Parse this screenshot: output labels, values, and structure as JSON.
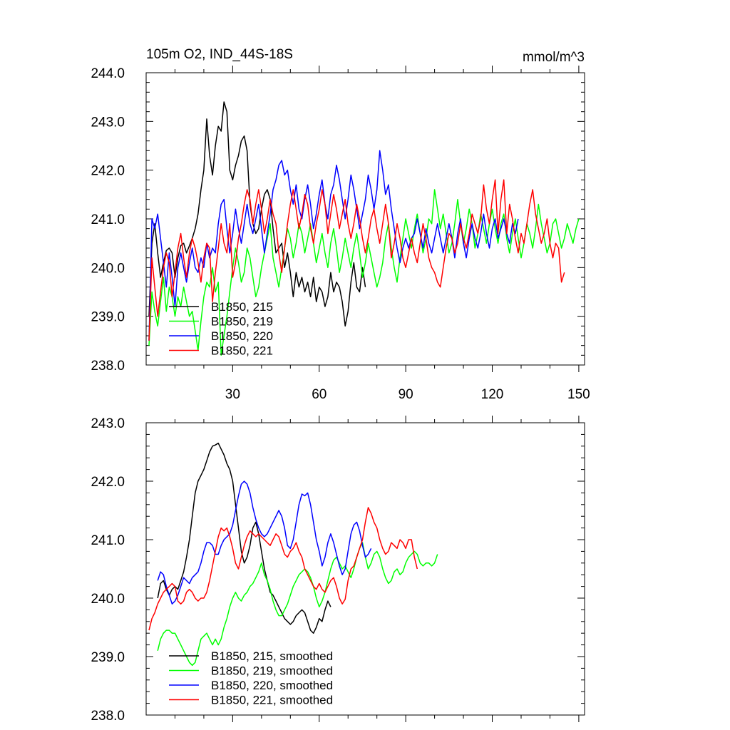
{
  "chart_data": [
    {
      "type": "line",
      "title": "105m O2, IND_44S-18S",
      "units": "mmol/m^3",
      "xlim": [
        0,
        152
      ],
      "ylim": [
        238.0,
        244.0
      ],
      "x_ticks": [
        30,
        60,
        90,
        120,
        150
      ],
      "y_ticks": [
        "238.0",
        "239.0",
        "240.0",
        "241.0",
        "242.0",
        "243.0",
        "244.0"
      ],
      "grid": false,
      "legend_position": "lower-left",
      "series": [
        {
          "name": "B1850, 215",
          "color": "#000000",
          "x_start": 1,
          "values": [
            239.0,
            240.5,
            240.9,
            240.3,
            239.8,
            240.1,
            240.35,
            240.4,
            240.3,
            239.8,
            240.2,
            240.45,
            240.5,
            240.3,
            240.45,
            240.6,
            240.8,
            241.1,
            241.6,
            242.0,
            243.05,
            242.3,
            241.9,
            242.5,
            242.9,
            242.8,
            243.4,
            243.2,
            242.0,
            241.8,
            242.1,
            242.3,
            242.6,
            242.7,
            242.4,
            241.3,
            240.9,
            240.7,
            240.8,
            241.2,
            241.5,
            241.6,
            241.4,
            240.8,
            240.3,
            240.4,
            240.5,
            240.0,
            240.3,
            239.9,
            239.4,
            239.9,
            239.6,
            239.8,
            239.5,
            239.7,
            239.4,
            239.8,
            239.3,
            239.6,
            239.5,
            239.2,
            239.4,
            239.9,
            239.5,
            239.7,
            239.6,
            239.3,
            238.8,
            239.1,
            239.7,
            240.1,
            239.6,
            239.5,
            240.0,
            239.6
          ]
        },
        {
          "name": "B1850, 219",
          "color": "#00ff00",
          "x_start": 1,
          "values": [
            238.4,
            239.5,
            239.1,
            238.8,
            239.3,
            239.8,
            239.1,
            239.6,
            239.4,
            239.0,
            239.4,
            239.2,
            239.6,
            239.3,
            239.0,
            239.1,
            238.7,
            238.3,
            238.9,
            239.4,
            239.7,
            239.6,
            240.0,
            239.5,
            239.7,
            238.2,
            238.6,
            239.0,
            239.5,
            240.0,
            240.4,
            240.1,
            239.7,
            239.9,
            240.4,
            240.2,
            239.8,
            239.4,
            239.6,
            240.0,
            240.3,
            240.6,
            240.9,
            240.2,
            239.9,
            239.6,
            240.0,
            240.4,
            240.8,
            240.6,
            240.2,
            240.5,
            240.9,
            240.7,
            240.3,
            240.6,
            240.9,
            240.5,
            240.1,
            240.4,
            240.7,
            240.3,
            240.0,
            240.5,
            240.8,
            240.4,
            239.9,
            240.2,
            240.6,
            240.3,
            240.0,
            240.4,
            240.7,
            240.3,
            239.8,
            240.1,
            240.5,
            240.2,
            239.9,
            239.6,
            239.8,
            240.1,
            240.6,
            240.9,
            240.4,
            240.0,
            239.7,
            240.2,
            240.6,
            241.0,
            240.7,
            240.4,
            240.8,
            241.1,
            240.7,
            240.3,
            240.6,
            241.0,
            240.9,
            241.6,
            241.2,
            240.8,
            241.1,
            240.7,
            240.3,
            240.5,
            240.9,
            241.4,
            240.9,
            240.5,
            240.8,
            241.2,
            240.9,
            240.4,
            240.7,
            241.1,
            240.8,
            240.5,
            240.9,
            241.2,
            240.8,
            240.5,
            240.9,
            241.1,
            240.6,
            240.3,
            240.7,
            241.0,
            240.6,
            240.2,
            240.5,
            240.9,
            240.7,
            240.4,
            240.8,
            241.3,
            240.9,
            240.6,
            240.3,
            240.5,
            240.9,
            241.0,
            240.7,
            240.4,
            240.6,
            240.9,
            240.7,
            240.5,
            240.8,
            241.0
          ]
        },
        {
          "name": "B1850, 220",
          "color": "#0000ff",
          "x_start": 1,
          "values": [
            238.5,
            241.0,
            240.8,
            241.1,
            240.6,
            240.1,
            239.6,
            240.3,
            239.8,
            239.2,
            240.0,
            240.3,
            240.0,
            239.7,
            240.1,
            240.4,
            240.0,
            239.9,
            240.2,
            240.0,
            240.5,
            240.2,
            240.4,
            240.3,
            240.9,
            241.3,
            241.4,
            240.8,
            240.3,
            240.7,
            241.2,
            240.8,
            240.5,
            240.9,
            241.3,
            240.9,
            240.7,
            241.0,
            241.3,
            240.8,
            240.3,
            240.7,
            241.1,
            241.6,
            241.8,
            242.1,
            242.2,
            241.9,
            242.0,
            241.6,
            241.3,
            241.7,
            241.2,
            241.0,
            241.4,
            241.7,
            241.3,
            240.8,
            241.1,
            241.5,
            241.8,
            241.3,
            241.0,
            241.5,
            241.7,
            242.1,
            241.8,
            241.4,
            241.0,
            241.4,
            241.9,
            241.6,
            241.2,
            240.8,
            241.1,
            241.4,
            241.9,
            241.6,
            241.2,
            241.6,
            242.4,
            242.0,
            241.5,
            241.7,
            241.2,
            240.8,
            240.4,
            240.1,
            240.4,
            240.6,
            240.4,
            240.6,
            240.7,
            241.0,
            240.7,
            240.4,
            240.8,
            240.5,
            240.3,
            240.6,
            240.9,
            240.6,
            240.3,
            240.6,
            240.9,
            240.6,
            240.2,
            240.7,
            241.0,
            240.5,
            240.2,
            240.6,
            240.9,
            240.6,
            240.4,
            240.7,
            241.1,
            240.7,
            240.4,
            240.8,
            241.0,
            240.6,
            240.8,
            241.0,
            240.7,
            240.5,
            240.9,
            240.7,
            241.0
          ]
        },
        {
          "name": "B1850, 221",
          "color": "#ff0000",
          "x_start": 1,
          "values": [
            238.5,
            240.2,
            239.6,
            239.0,
            239.5,
            240.0,
            240.3,
            240.1,
            239.4,
            239.9,
            240.4,
            240.7,
            240.2,
            239.8,
            240.3,
            240.6,
            240.4,
            240.1,
            239.7,
            240.2,
            240.5,
            240.4,
            239.3,
            239.9,
            240.4,
            240.9,
            240.5,
            240.3,
            240.9,
            239.8,
            240.1,
            240.6,
            240.9,
            241.3,
            241.6,
            241.4,
            240.9,
            241.3,
            241.6,
            241.2,
            240.7,
            241.0,
            241.4,
            241.1,
            240.9,
            240.3,
            239.9,
            240.4,
            240.9,
            241.3,
            241.6,
            241.2,
            240.8,
            241.1,
            241.5,
            241.3,
            240.8,
            240.5,
            240.9,
            241.2,
            241.6,
            241.3,
            240.7,
            241.1,
            241.5,
            241.2,
            240.8,
            241.1,
            241.4,
            240.9,
            240.6,
            240.9,
            241.3,
            241.0,
            240.6,
            240.3,
            240.6,
            241.0,
            241.2,
            240.8,
            240.5,
            240.9,
            241.3,
            240.9,
            240.2,
            240.5,
            240.9,
            240.6,
            240.2,
            240.0,
            240.3,
            240.6,
            240.3,
            240.1,
            240.5,
            240.9,
            240.6,
            240.2,
            240.0,
            239.9,
            239.7,
            239.6,
            240.0,
            240.4,
            240.7,
            240.6,
            240.3,
            240.5,
            240.9,
            240.6,
            240.4,
            240.7,
            241.1,
            240.9,
            240.7,
            241.0,
            241.7,
            241.2,
            240.9,
            241.4,
            241.8,
            240.7,
            241.4,
            241.8,
            240.7,
            241.3,
            241.0,
            240.6,
            240.3,
            240.7,
            240.5,
            240.9,
            241.3,
            241.6,
            241.1,
            240.8,
            240.5,
            240.7,
            241.0,
            240.5,
            240.2,
            240.5,
            240.4,
            239.7,
            239.9
          ]
        }
      ]
    },
    {
      "type": "line",
      "title": "",
      "xlim": [
        0,
        152
      ],
      "ylim": [
        238.0,
        243.0
      ],
      "x_ticks": [
        30,
        60,
        90,
        120,
        150
      ],
      "x_tick_labels_shown": false,
      "y_ticks": [
        "238.0",
        "239.0",
        "240.0",
        "241.0",
        "242.0",
        "243.0"
      ],
      "grid": false,
      "legend_position": "lower-left",
      "series": [
        {
          "name": "B1850, 215, smoothed",
          "color": "#000000",
          "x_start": 4,
          "values": [
            240.0,
            240.25,
            240.3,
            240.15,
            240.05,
            240.15,
            240.2,
            240.15,
            240.3,
            240.45,
            240.7,
            241.0,
            241.4,
            241.8,
            242.0,
            242.1,
            242.2,
            242.35,
            242.5,
            242.6,
            242.62,
            242.65,
            242.55,
            242.45,
            242.3,
            242.2,
            242.0,
            241.6,
            241.2,
            240.8,
            240.6,
            240.7,
            240.9,
            241.2,
            241.3,
            241.1,
            240.8,
            240.5,
            240.3,
            240.1,
            240.05,
            239.95,
            239.85,
            239.75,
            239.65,
            239.6,
            239.55,
            239.6,
            239.7,
            239.75,
            239.8,
            239.75,
            239.6,
            239.45,
            239.4,
            239.5,
            239.65,
            239.6,
            239.8,
            239.95,
            239.85
          ]
        },
        {
          "name": "B1850, 219, smoothed",
          "color": "#00ff00",
          "x_start": 4,
          "values": [
            239.1,
            239.3,
            239.4,
            239.45,
            239.45,
            239.4,
            239.4,
            239.3,
            239.2,
            239.1,
            239.0,
            238.9,
            238.85,
            238.9,
            239.1,
            239.3,
            239.35,
            239.4,
            239.3,
            239.2,
            239.3,
            239.2,
            239.3,
            239.5,
            239.65,
            239.85,
            240.0,
            240.1,
            240.0,
            239.95,
            240.05,
            240.1,
            240.2,
            240.25,
            240.35,
            240.45,
            240.6,
            240.4,
            240.3,
            240.15,
            239.95,
            239.8,
            239.7,
            239.7,
            239.8,
            239.9,
            240.05,
            240.2,
            240.3,
            240.4,
            240.45,
            240.5,
            240.45,
            240.35,
            240.2,
            240.0,
            239.85,
            239.95,
            240.1,
            240.3,
            240.5,
            240.65,
            240.7,
            240.6,
            240.5,
            240.55,
            240.45,
            240.35,
            240.5,
            240.7,
            240.85,
            240.95,
            240.7,
            240.5,
            240.6,
            240.75,
            240.8,
            240.7,
            240.5,
            240.35,
            240.25,
            240.3,
            240.45,
            240.5,
            240.4,
            240.45,
            240.6,
            240.7,
            240.75,
            240.8,
            240.75,
            240.6,
            240.55,
            240.6,
            240.6,
            240.55,
            240.6,
            240.75
          ]
        },
        {
          "name": "B1850, 220, smoothed",
          "color": "#0000ff",
          "x_start": 4,
          "values": [
            240.3,
            240.45,
            240.4,
            240.2,
            240.05,
            239.9,
            239.95,
            240.05,
            240.2,
            240.35,
            240.3,
            240.25,
            240.35,
            240.4,
            240.45,
            240.6,
            240.8,
            240.95,
            240.95,
            240.9,
            240.75,
            240.75,
            240.9,
            241.0,
            241.05,
            241.1,
            241.25,
            241.5,
            241.75,
            241.95,
            242.0,
            241.95,
            241.8,
            241.55,
            241.35,
            241.2,
            241.1,
            241.05,
            241.1,
            241.2,
            241.3,
            241.4,
            241.5,
            241.4,
            241.2,
            240.9,
            240.85,
            241.0,
            241.3,
            241.6,
            241.78,
            241.75,
            241.8,
            241.6,
            241.3,
            241.0,
            240.8,
            240.55,
            240.7,
            240.95,
            241.1,
            240.95,
            240.75,
            240.55,
            240.4,
            240.5,
            240.8,
            241.1,
            241.25,
            241.3,
            241.15,
            240.9,
            240.7,
            240.75,
            240.85
          ]
        },
        {
          "name": "B1850, 221, smoothed",
          "color": "#ff0000",
          "x_start": 1,
          "values": [
            239.45,
            239.65,
            239.75,
            239.9,
            240.0,
            240.1,
            240.15,
            240.2,
            240.25,
            240.2,
            239.95,
            239.9,
            239.95,
            240.1,
            240.15,
            240.1,
            240.0,
            239.95,
            240.0,
            240.0,
            240.1,
            240.3,
            240.55,
            240.8,
            241.05,
            241.2,
            241.15,
            241.2,
            241.05,
            240.85,
            240.6,
            240.5,
            240.7,
            240.9,
            241.05,
            241.15,
            241.1,
            241.05,
            241.1,
            241.05,
            241.0,
            240.95,
            240.9,
            241.0,
            241.1,
            241.05,
            240.9,
            240.75,
            240.7,
            240.8,
            240.85,
            240.95,
            240.8,
            240.7,
            240.5,
            240.4,
            240.3,
            240.2,
            240.15,
            240.25,
            240.15,
            240.1,
            240.2,
            240.3,
            240.35,
            240.2,
            240.0,
            239.9,
            239.98,
            240.3,
            240.5,
            240.55,
            240.7,
            240.85,
            241.0,
            241.3,
            241.55,
            241.45,
            241.3,
            241.2,
            241.0,
            240.85,
            240.75,
            240.8,
            240.95,
            240.9,
            240.85,
            241.0,
            240.95,
            240.85,
            241.0,
            241.0,
            240.7,
            240.5
          ]
        }
      ]
    }
  ]
}
